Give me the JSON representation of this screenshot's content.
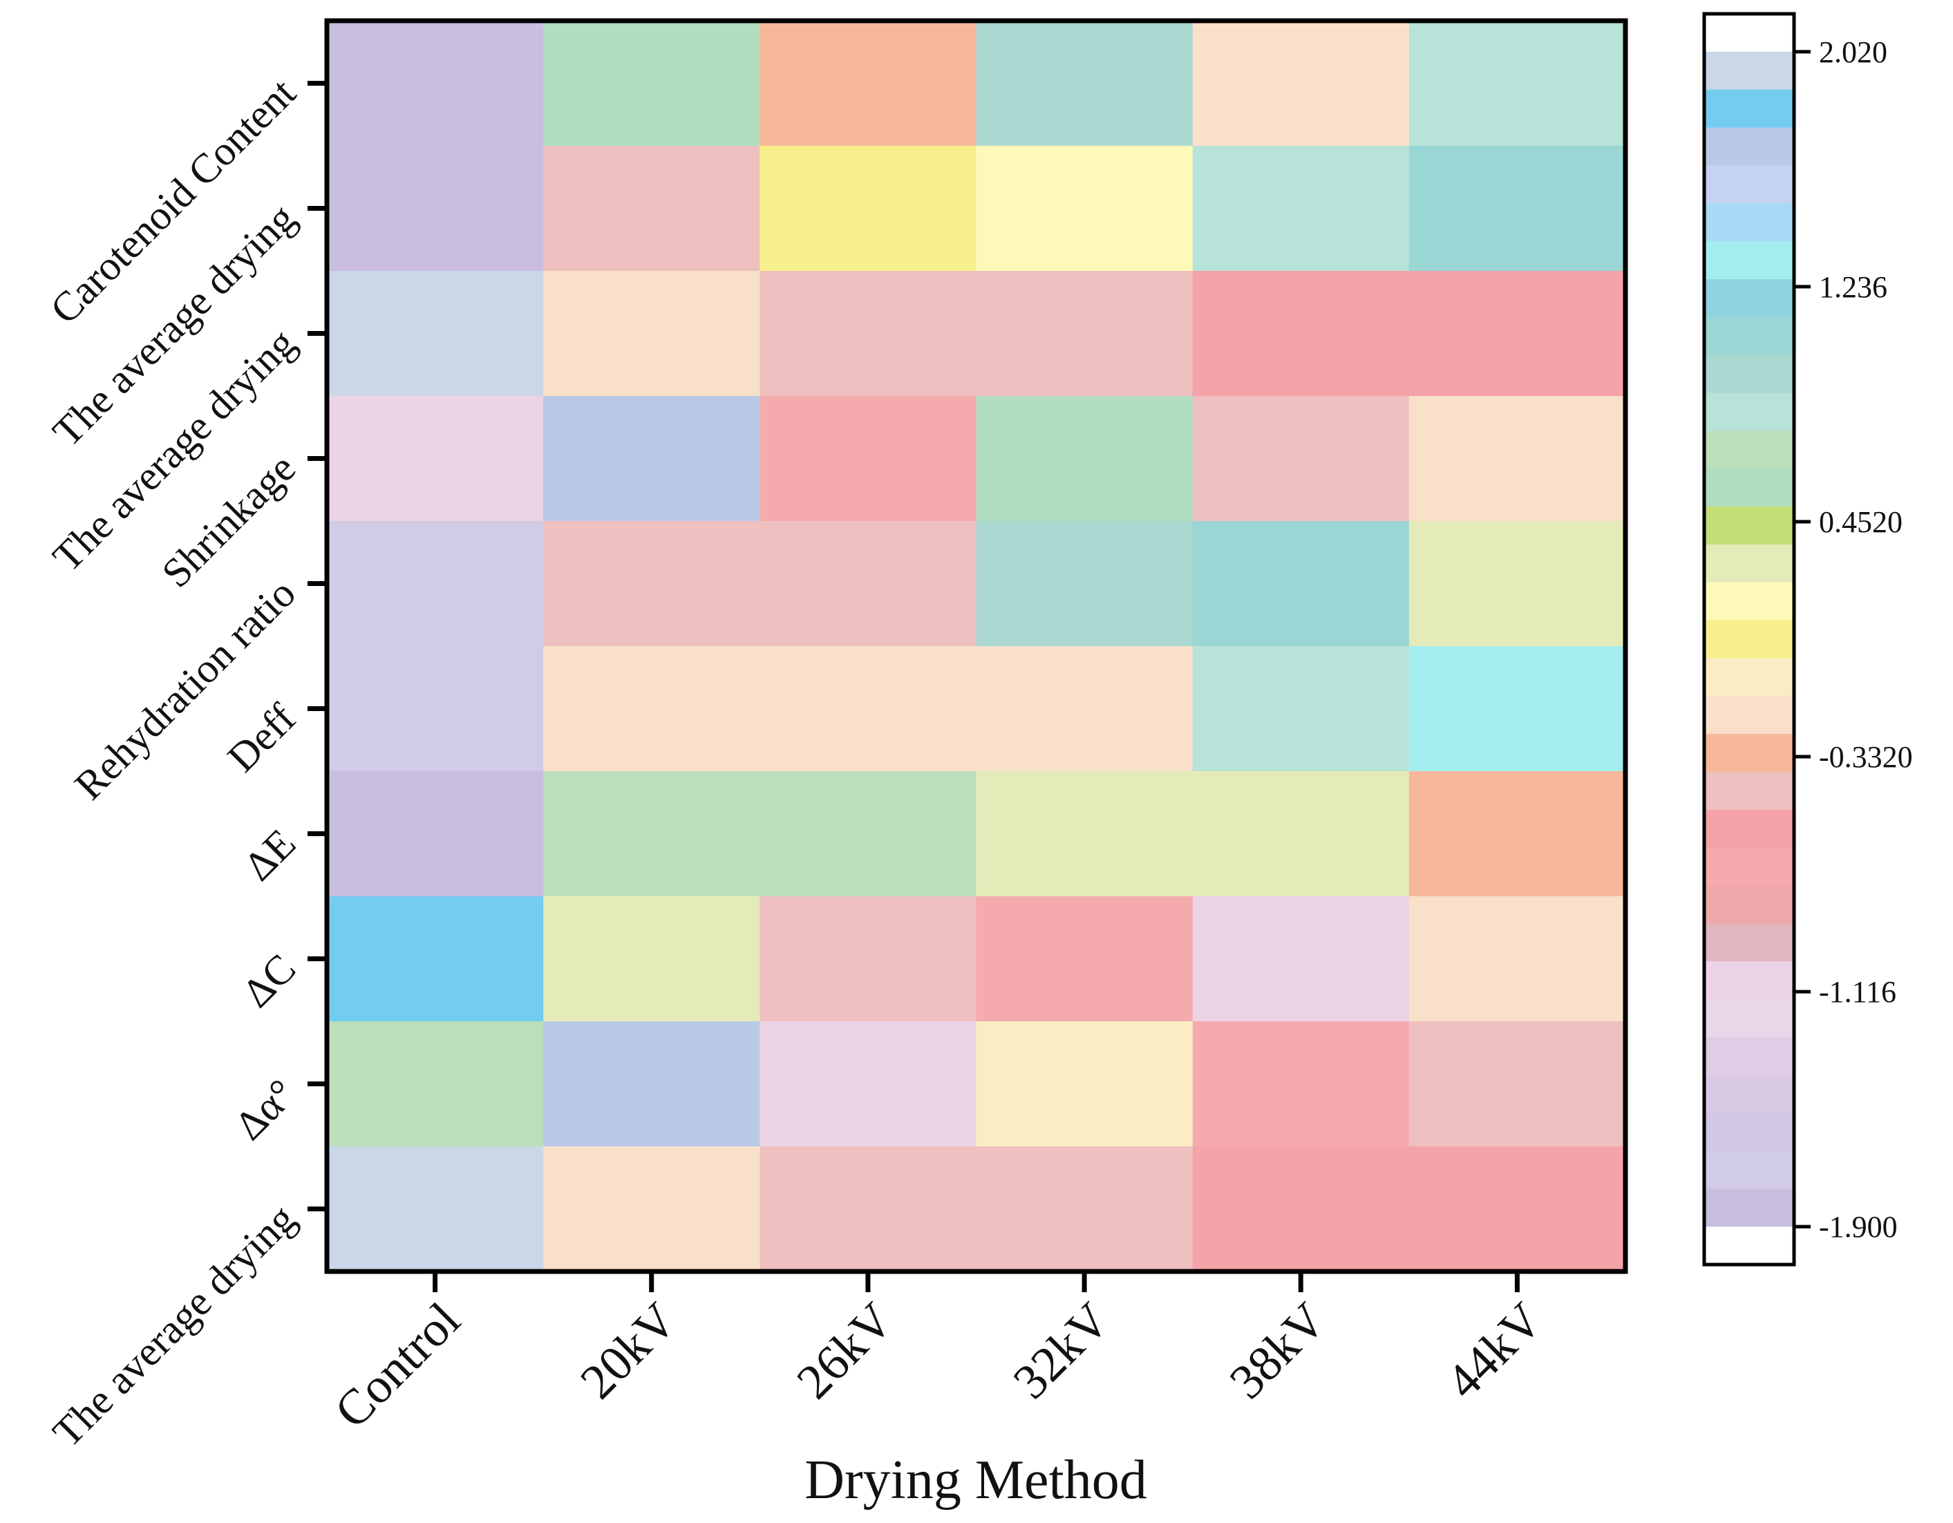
{
  "chart_data": {
    "type": "heatmap",
    "xlabel": "Drying Method",
    "ylabel": "",
    "x_categories": [
      "Control",
      "20kV",
      "26kV",
      "32kV",
      "38kV",
      "44kV"
    ],
    "y_categories": [
      "Carotenoid Content",
      "The average drying",
      "The average drying",
      "Shrinkage",
      "Rehydration ratio",
      "Deff",
      "ΔE",
      "ΔC",
      "Δα°",
      "The average drying"
    ],
    "values": [
      [
        -1.85,
        0.55,
        -0.3,
        0.95,
        -0.15,
        0.85
      ],
      [
        -1.85,
        -0.4,
        0.0,
        0.15,
        0.85,
        1.05
      ],
      [
        2.0,
        -0.15,
        -0.4,
        -0.4,
        -0.55,
        -0.55
      ],
      [
        -1.05,
        1.65,
        -0.75,
        0.55,
        -0.4,
        -0.15
      ],
      [
        -1.65,
        -0.4,
        -0.4,
        0.95,
        1.1,
        0.35
      ],
      [
        -1.75,
        -0.15,
        -0.15,
        -0.15,
        0.85,
        1.3
      ],
      [
        -1.85,
        0.65,
        0.65,
        0.35,
        0.35,
        -0.3
      ],
      [
        1.85,
        0.35,
        -0.4,
        -0.75,
        -1.05,
        -0.15
      ],
      [
        0.65,
        1.65,
        -1.05,
        -0.05,
        -0.75,
        -0.4
      ],
      [
        2.0,
        -0.15,
        -0.4,
        -0.4,
        -0.55,
        -0.55
      ]
    ],
    "colorbar": {
      "ticks": [
        "2.020",
        "1.236",
        "0.4520",
        "-0.3320",
        "-1.116",
        "-1.900"
      ],
      "tick_values": [
        2.02,
        1.236,
        0.452,
        -0.332,
        -1.116,
        -1.9
      ],
      "range": [
        -1.9,
        2.02
      ],
      "band_colors": [
        "#ffffff",
        "#c9d7e7",
        "#74cdf0",
        "#bac9e6",
        "#c5d2f0",
        "#a6daf5",
        "#a4edee",
        "#8fd4e0",
        "#99d6d4",
        "#acd8d2",
        "#b7e3d8",
        "#bbdfbb",
        "#b1ddc0",
        "#c4de77",
        "#e5ebb8",
        "#fff9b9",
        "#f7f08c",
        "#fbecc3",
        "#f9e1c9",
        "#f7b89a",
        "#eec0c0",
        "#f4a3a8",
        "#f5abad",
        "#eea8aa",
        "#e1b7bf",
        "#ecd3e6",
        "#e7d7e9",
        "#dfcde5",
        "#d9c9e4",
        "#d2c7e5",
        "#d0cce5",
        "#c9bde0",
        "#ffffff"
      ]
    }
  }
}
